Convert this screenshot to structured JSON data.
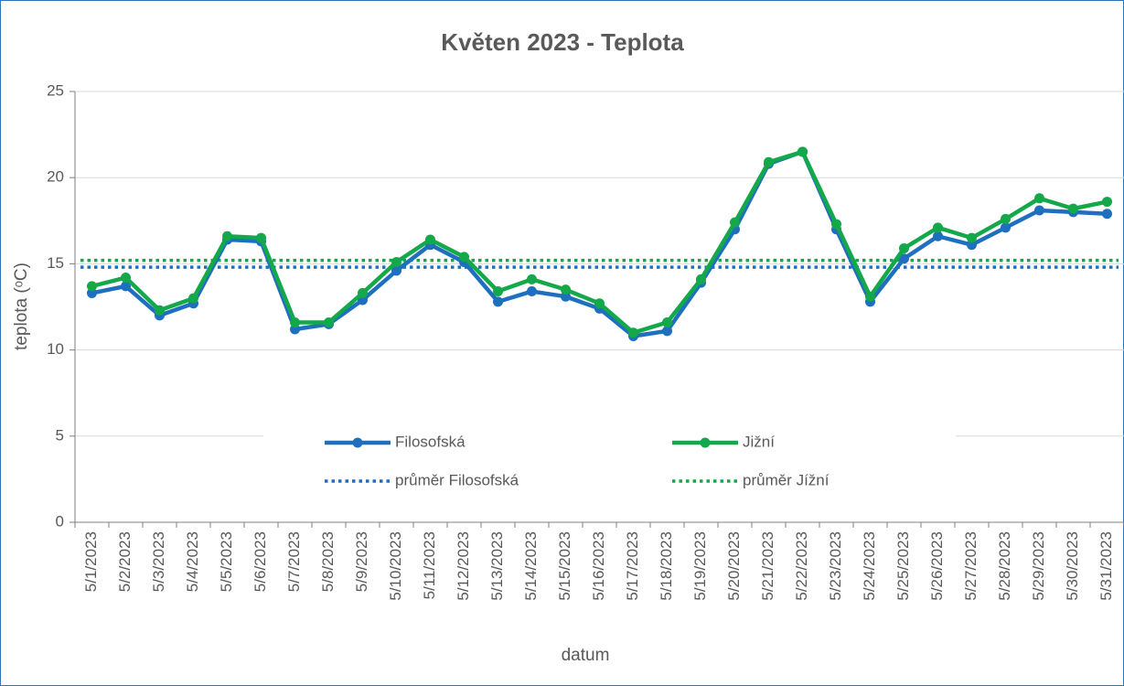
{
  "chart_data": {
    "type": "line",
    "title": "Květen 2023 - Teplota",
    "x_label": "datum",
    "y_label": "teplota (ᵒC)",
    "categories": [
      "5/1/2023",
      "5/2/2023",
      "5/3/2023",
      "5/4/2023",
      "5/5/2023",
      "5/6/2023",
      "5/7/2023",
      "5/8/2023",
      "5/9/2023",
      "5/10/2023",
      "5/11/2023",
      "5/12/2023",
      "5/13/2023",
      "5/14/2023",
      "5/15/2023",
      "5/16/2023",
      "5/17/2023",
      "5/18/2023",
      "5/19/2023",
      "5/20/2023",
      "5/21/2023",
      "5/22/2023",
      "5/23/2023",
      "5/24/2023",
      "5/25/2023",
      "5/26/2023",
      "5/27/2023",
      "5/28/2023",
      "5/29/2023",
      "5/30/2023",
      "5/31/2023"
    ],
    "series": [
      {
        "name": "Filosofská",
        "color": "#1f6fbf",
        "values": [
          13.3,
          13.7,
          12.0,
          12.7,
          16.4,
          16.3,
          11.2,
          11.5,
          12.9,
          14.6,
          16.1,
          15.1,
          12.8,
          13.4,
          13.1,
          12.4,
          10.8,
          11.1,
          13.9,
          17.0,
          20.8,
          21.5,
          17.0,
          12.8,
          15.3,
          16.6,
          16.1,
          17.1,
          18.1,
          18.0,
          17.9
        ]
      },
      {
        "name": "Jižní",
        "color": "#13a84a",
        "values": [
          13.7,
          14.2,
          12.3,
          13.0,
          16.6,
          16.5,
          11.6,
          11.6,
          13.3,
          15.1,
          16.4,
          15.4,
          13.4,
          14.1,
          13.5,
          12.7,
          11.0,
          11.6,
          14.1,
          17.4,
          20.9,
          21.5,
          17.3,
          13.1,
          15.9,
          17.1,
          16.5,
          17.6,
          18.8,
          18.2,
          18.6
        ]
      }
    ],
    "reference_lines": [
      {
        "name": "průměr Filosofská",
        "color": "#1f6fbf",
        "value": 14.8
      },
      {
        "name": "průměr Jížní",
        "color": "#13a84a",
        "value": 15.2
      }
    ],
    "ylim": [
      0,
      25
    ],
    "yticks": [
      0,
      5,
      10,
      15,
      20,
      25
    ],
    "grid": true
  }
}
